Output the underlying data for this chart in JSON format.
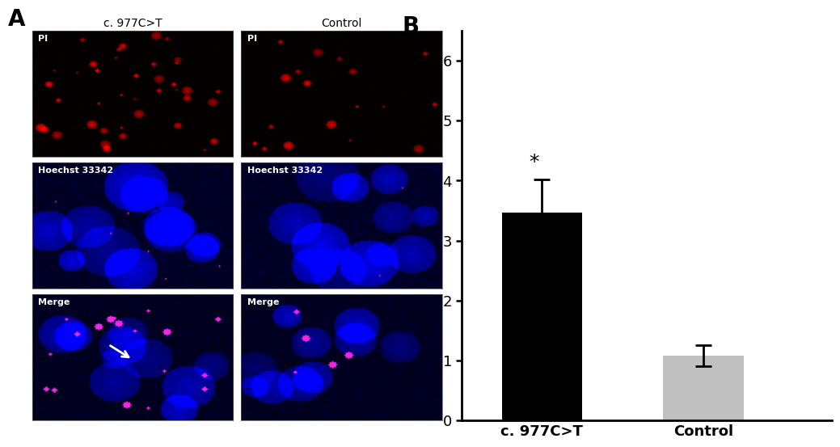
{
  "panel_b": {
    "categories": [
      "c. 977C>T",
      "Control"
    ],
    "values": [
      3.47,
      1.08
    ],
    "errors": [
      0.55,
      0.18
    ],
    "bar_colors": [
      "#000000",
      "#c0c0c0"
    ],
    "ylim": [
      0,
      6.5
    ],
    "yticks": [
      0,
      1,
      2,
      3,
      4,
      5,
      6
    ],
    "star_text": "*",
    "star_fontsize": 18,
    "tick_fontsize": 13,
    "label_fontsize": 13,
    "bar_width": 0.5,
    "label_A": "A",
    "label_B": "B",
    "label_fontsize_panel": 20
  },
  "panel_a": {
    "col1_label": "c. 977C>T",
    "col2_label": "Control",
    "row_labels_left": [
      "PI",
      "Hoechst 33342",
      "Merge"
    ],
    "row_labels_right": [
      "PI",
      "Hoechst 33342",
      "Merge"
    ]
  }
}
